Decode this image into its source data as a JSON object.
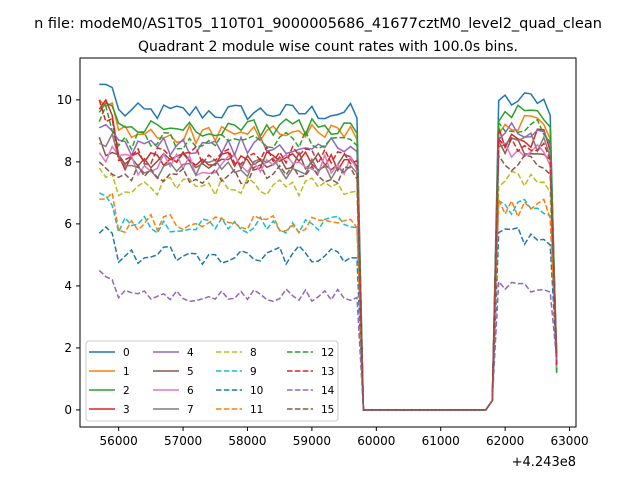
{
  "figure": {
    "suptitle": "n file: modeM0/AS1T05_110T01_9000005686_41677cztM0_level2_quad_clean",
    "offset_text": "+4.243e8"
  },
  "chart_data": {
    "type": "line",
    "title": "Quadrant 2 module wise count rates with 100.0s bins.",
    "xlabel": "",
    "ylabel": "",
    "x_offset": 424300000,
    "xlim": [
      55400,
      63100
    ],
    "ylim": [
      -0.55,
      11.35
    ],
    "x_ticks": [
      56000,
      57000,
      58000,
      59000,
      60000,
      61000,
      62000,
      63000
    ],
    "x_tick_labels": [
      "56000",
      "57000",
      "58000",
      "59000",
      "60000",
      "61000",
      "62000",
      "63000"
    ],
    "y_ticks": [
      0,
      2,
      4,
      6,
      8,
      10
    ],
    "y_tick_labels": [
      "0",
      "2",
      "4",
      "6",
      "8",
      "10"
    ],
    "grid": false,
    "legend": {
      "placement": "lower left",
      "columns": 4
    },
    "x_start": 55700,
    "bin": 100,
    "zero_range": [
      59800,
      61700
    ],
    "series": [
      {
        "name": "0",
        "color": "#1f77b4",
        "dash": "solid",
        "level": 9.6,
        "p2": 10.0,
        "first": [
          10.5,
          10.5,
          10.4
        ],
        "amp": 0.3
      },
      {
        "name": "1",
        "color": "#ff7f0e",
        "dash": "solid",
        "level": 8.9,
        "p2": 9.2,
        "first": [
          10.0,
          9.8,
          9.9
        ],
        "amp": 0.3
      },
      {
        "name": "2",
        "color": "#2ca02c",
        "dash": "solid",
        "level": 9.1,
        "p2": 9.6,
        "first": [
          9.6,
          9.9,
          9.8
        ],
        "amp": 0.3
      },
      {
        "name": "3",
        "color": "#d62728",
        "dash": "solid",
        "level": 8.0,
        "p2": 8.8,
        "first": [
          9.7,
          10.0,
          9.5
        ],
        "amp": 0.35
      },
      {
        "name": "4",
        "color": "#9467bd",
        "dash": "solid",
        "level": 8.5,
        "p2": 9.0,
        "first": [
          9.1,
          9.2,
          9.0
        ],
        "amp": 0.3
      },
      {
        "name": "5",
        "color": "#8c564b",
        "dash": "solid",
        "level": 8.0,
        "p2": 8.5,
        "first": [
          8.8,
          8.2,
          8.3
        ],
        "amp": 0.3
      },
      {
        "name": "6",
        "color": "#e377c2",
        "dash": "solid",
        "level": 7.9,
        "p2": 8.3,
        "first": [
          8.3,
          8.0,
          8.5
        ],
        "amp": 0.35
      },
      {
        "name": "7",
        "color": "#7f7f7f",
        "dash": "solid",
        "level": 7.8,
        "p2": 8.6,
        "first": [
          8.6,
          8.5,
          8.9
        ],
        "amp": 0.35
      },
      {
        "name": "8",
        "color": "#bcbd22",
        "dash": "dashed",
        "level": 7.2,
        "p2": 7.4,
        "first": [
          7.8,
          7.5,
          7.6
        ],
        "amp": 0.3
      },
      {
        "name": "9",
        "color": "#17becf",
        "dash": "dashed",
        "level": 6.0,
        "p2": 6.6,
        "first": [
          7.0,
          6.9,
          6.6
        ],
        "amp": 0.3
      },
      {
        "name": "10",
        "color": "#1f77b4",
        "dash": "dashed",
        "level": 5.0,
        "p2": 5.6,
        "first": [
          5.7,
          5.9,
          5.7
        ],
        "amp": 0.3
      },
      {
        "name": "11",
        "color": "#ff7f0e",
        "dash": "dashed",
        "level": 6.0,
        "p2": 6.5,
        "first": [
          6.8,
          6.8,
          7.0
        ],
        "amp": 0.3
      },
      {
        "name": "12",
        "color": "#2ca02c",
        "dash": "dashed",
        "level": 8.7,
        "p2": 9.1,
        "first": [
          9.3,
          9.8,
          9.0
        ],
        "amp": 0.3
      },
      {
        "name": "13",
        "color": "#d62728",
        "dash": "dashed",
        "level": 8.2,
        "p2": 8.5,
        "first": [
          10.0,
          9.3,
          9.4
        ],
        "amp": 0.3
      },
      {
        "name": "14",
        "color": "#9467bd",
        "dash": "dashed",
        "level": 3.7,
        "p2": 4.0,
        "first": [
          4.5,
          4.3,
          4.2
        ],
        "amp": 0.2
      },
      {
        "name": "15",
        "color": "#8c564b",
        "dash": "dashed",
        "level": 7.6,
        "p2": 8.0,
        "first": [
          8.0,
          7.8,
          7.6
        ],
        "amp": 0.3
      }
    ]
  }
}
